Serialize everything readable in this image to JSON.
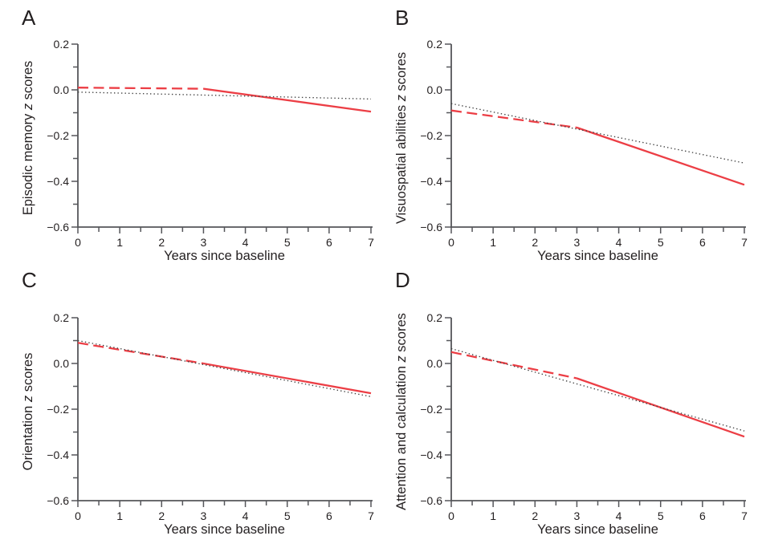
{
  "style": {
    "background": "#ffffff",
    "line_red": "#ec3e45",
    "line_dotted_gray": "#3f3f3f",
    "axis_color": "#55565a",
    "text_color": "#231f20"
  },
  "chart_data": [
    {
      "type": "line",
      "panel_label": "A",
      "ylabel": {
        "pre": "Episodic memory",
        "italic": "z",
        "post": "scores"
      },
      "xlabel": "Years since baseline",
      "xlim": [
        0,
        7
      ],
      "ylim": [
        -0.6,
        0.2
      ],
      "xticks": [
        0,
        1,
        2,
        3,
        4,
        5,
        6,
        7
      ],
      "yticks": [
        0.2,
        0.0,
        -0.2,
        -0.4,
        -0.6
      ],
      "x_minor_step": 0.5,
      "y_minor_step": 0.1,
      "grid": false,
      "legend": false,
      "series": [
        {
          "name": "red-dashed-years-0-3",
          "style": "dashed",
          "color": "#ec3e45",
          "points": [
            [
              0,
              0.01
            ],
            [
              3,
              0.005
            ]
          ]
        },
        {
          "name": "red-solid-years-3-7",
          "style": "solid",
          "color": "#ec3e45",
          "points": [
            [
              3,
              0.005
            ],
            [
              7,
              -0.095
            ]
          ]
        },
        {
          "name": "gray-dotted-reference",
          "style": "dotted",
          "color": "#3f3f3f",
          "points": [
            [
              0,
              -0.01
            ],
            [
              7,
              -0.04
            ]
          ]
        }
      ]
    },
    {
      "type": "line",
      "panel_label": "B",
      "ylabel": {
        "pre": "Visuospatial abilities",
        "italic": "z",
        "post": "scores"
      },
      "xlabel": "Years since baseline",
      "xlim": [
        0,
        7
      ],
      "ylim": [
        -0.6,
        0.2
      ],
      "xticks": [
        0,
        1,
        2,
        3,
        4,
        5,
        6,
        7
      ],
      "yticks": [
        0.2,
        0.0,
        -0.2,
        -0.4,
        -0.6
      ],
      "x_minor_step": 0.5,
      "y_minor_step": 0.1,
      "grid": false,
      "legend": false,
      "series": [
        {
          "name": "red-dashed-years-0-3",
          "style": "dashed",
          "color": "#ec3e45",
          "points": [
            [
              0,
              -0.09
            ],
            [
              3,
              -0.165
            ]
          ]
        },
        {
          "name": "red-solid-years-3-7",
          "style": "solid",
          "color": "#ec3e45",
          "points": [
            [
              3,
              -0.165
            ],
            [
              7,
              -0.415
            ]
          ]
        },
        {
          "name": "gray-dotted-reference",
          "style": "dotted",
          "color": "#3f3f3f",
          "points": [
            [
              0,
              -0.06
            ],
            [
              7,
              -0.32
            ]
          ]
        }
      ]
    },
    {
      "type": "line",
      "panel_label": "C",
      "ylabel": {
        "pre": "Orientation",
        "italic": "z",
        "post": "scores"
      },
      "xlabel": "Years since baseline",
      "xlim": [
        0,
        7
      ],
      "ylim": [
        -0.6,
        0.2
      ],
      "xticks": [
        0,
        1,
        2,
        3,
        4,
        5,
        6,
        7
      ],
      "yticks": [
        0.2,
        0.0,
        -0.2,
        -0.4,
        -0.6
      ],
      "x_minor_step": 0.5,
      "y_minor_step": 0.1,
      "grid": false,
      "legend": false,
      "series": [
        {
          "name": "red-dashed-years-0-3",
          "style": "dashed",
          "color": "#ec3e45",
          "points": [
            [
              0,
              0.09
            ],
            [
              3,
              0.0
            ]
          ]
        },
        {
          "name": "red-solid-years-3-7",
          "style": "solid",
          "color": "#ec3e45",
          "points": [
            [
              3,
              0.0
            ],
            [
              7,
              -0.13
            ]
          ]
        },
        {
          "name": "gray-dotted-reference",
          "style": "dotted",
          "color": "#3f3f3f",
          "points": [
            [
              0,
              0.1
            ],
            [
              7,
              -0.145
            ]
          ]
        }
      ]
    },
    {
      "type": "line",
      "panel_label": "D",
      "ylabel": {
        "pre": "Attention and calculation",
        "italic": "z",
        "post": "scores"
      },
      "xlabel": "Years since baseline",
      "xlim": [
        0,
        7
      ],
      "ylim": [
        -0.6,
        0.2
      ],
      "xticks": [
        0,
        1,
        2,
        3,
        4,
        5,
        6,
        7
      ],
      "yticks": [
        0.2,
        0.0,
        -0.2,
        -0.4,
        -0.6
      ],
      "x_minor_step": 0.5,
      "y_minor_step": 0.1,
      "grid": false,
      "legend": false,
      "series": [
        {
          "name": "red-dashed-years-0-3",
          "style": "dashed",
          "color": "#ec3e45",
          "points": [
            [
              0,
              0.05
            ],
            [
              3,
              -0.065
            ]
          ]
        },
        {
          "name": "red-solid-years-3-7",
          "style": "solid",
          "color": "#ec3e45",
          "points": [
            [
              3,
              -0.065
            ],
            [
              7,
              -0.32
            ]
          ]
        },
        {
          "name": "gray-dotted-reference",
          "style": "dotted",
          "color": "#3f3f3f",
          "points": [
            [
              0,
              0.065
            ],
            [
              7,
              -0.295
            ]
          ]
        }
      ]
    }
  ]
}
